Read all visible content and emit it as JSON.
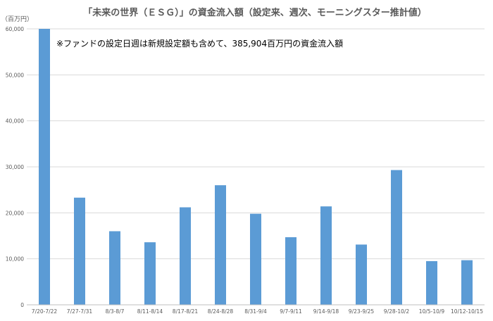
{
  "chart_data": {
    "type": "bar",
    "title": "「未来の世界（ＥＳＧ）」の資金流入額（設定来、週次、モーニングスター推計値）",
    "ylabel": "（百万円）",
    "annotation": "※ファンドの設定日週は新規設定額も含めて、385,904百万円の資金流入額",
    "categories": [
      "7/20-7/22",
      "7/27-7/31",
      "8/3-8/7",
      "8/11-8/14",
      "8/17-8/21",
      "8/24-8/28",
      "8/31-9/4",
      "9/7-9/11",
      "9/14-9/18",
      "9/23-9/25",
      "9/28-10/2",
      "10/5-10/9",
      "10/12-10/15"
    ],
    "values": [
      60000,
      23300,
      16000,
      13600,
      21200,
      26000,
      19800,
      14700,
      21400,
      13100,
      29300,
      9500,
      9700
    ],
    "ylim": [
      0,
      60000
    ],
    "yticks": [
      0,
      10000,
      20000,
      30000,
      40000,
      50000,
      60000
    ],
    "ytick_labels": [
      "0",
      "10,000",
      "20,000",
      "30,000",
      "40,000",
      "50,000",
      "60,000"
    ],
    "bar_color": "#5b9bd5",
    "grid": true,
    "legend": "none"
  }
}
